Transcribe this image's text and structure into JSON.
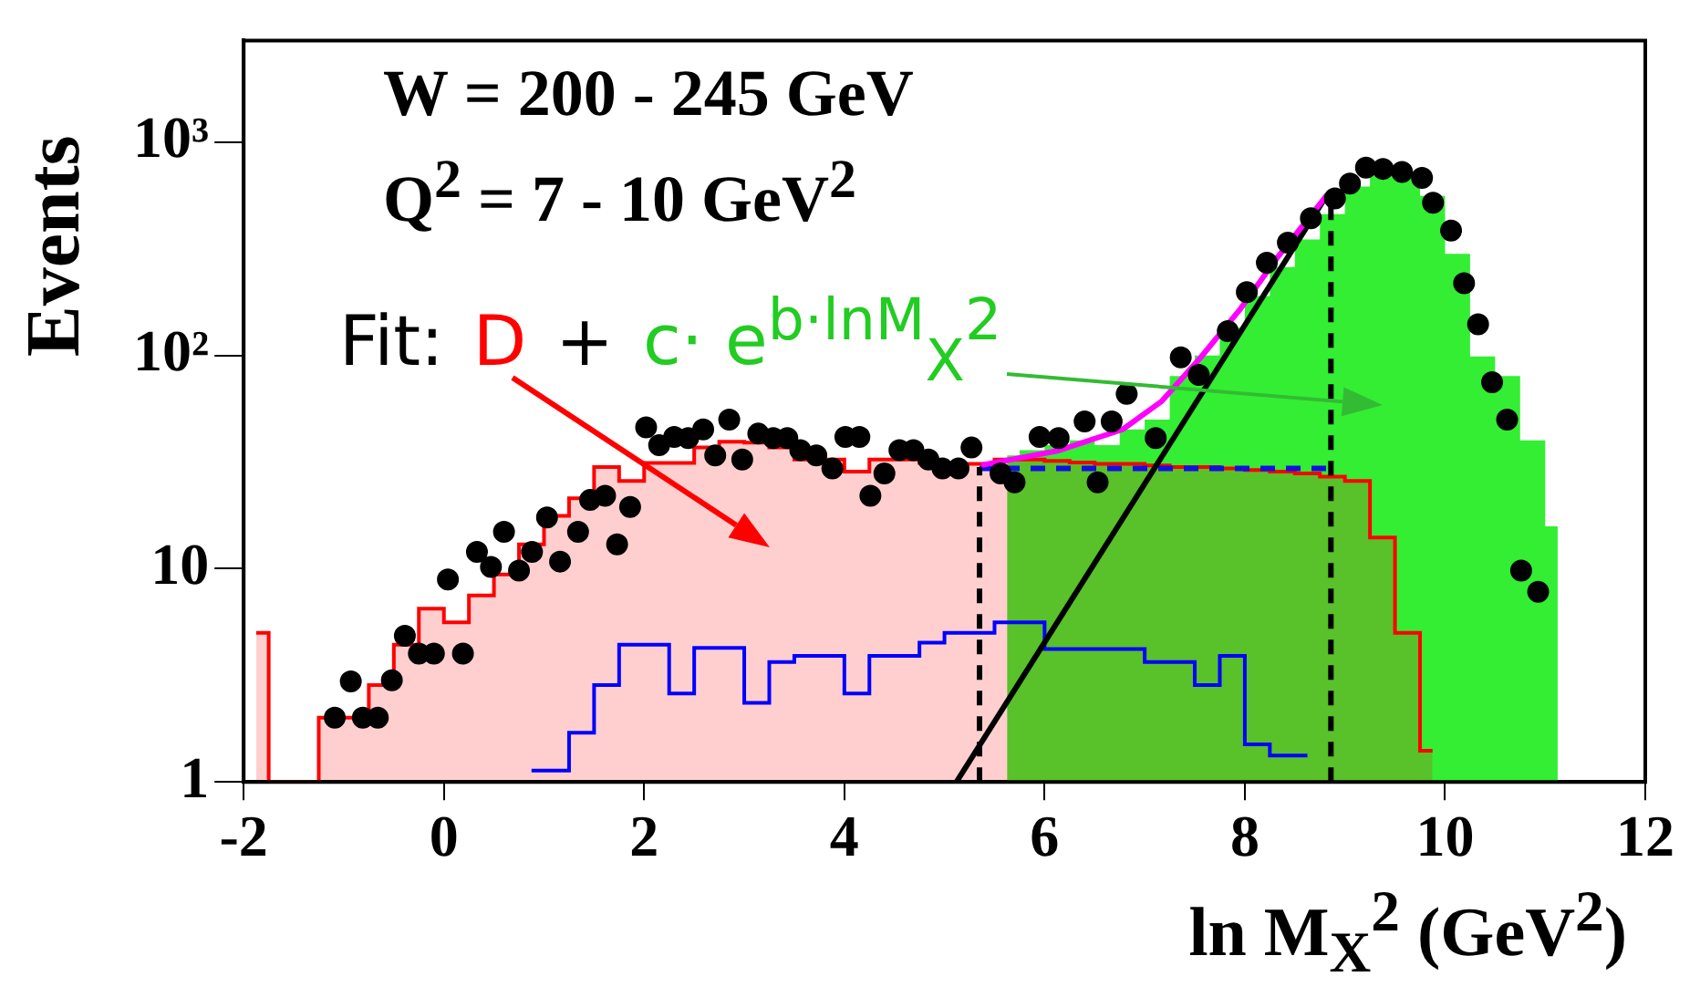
{
  "chart_data": {
    "type": "step",
    "log": "y",
    "xlim": [
      -2,
      12
    ],
    "xticks": [
      -2,
      0,
      2,
      4,
      6,
      8,
      10,
      12
    ],
    "ylim": [
      1,
      3000
    ],
    "yticks": [
      1,
      10,
      {
        "value": 100,
        "label": "10²"
      },
      {
        "value": 1000,
        "label": "10³"
      }
    ],
    "ylabel": "Events",
    "xlabel": "ln M$_{X}$$^{2}$ (GeV$^{2}$)",
    "annotations": [
      "W = 200 - 245 GeV",
      "Q$^{2}$ = 7 - 10 GeV$^{2}$",
      "Fit:",
      "D",
      "+",
      "c· e$^{b·lnM}$$_{X}$$^{2}$"
    ],
    "series": [
      {
        "type": "area",
        "color": "#33ee33",
        "x": [
          5.625,
          5.875,
          6.125,
          6.375,
          6.625,
          6.875,
          7.125,
          7.375,
          7.625,
          7.875,
          8.125,
          8.375,
          8.625,
          8.875,
          9.125,
          9.375,
          9.625,
          9.875,
          10.125,
          10.375,
          10.625,
          10.875,
          11.125
        ],
        "values": [
          34,
          36,
          38,
          40,
          38,
          45,
          50,
          80,
          100,
          135,
          190,
          260,
          350,
          460,
          620,
          700,
          680,
          560,
          300,
          99,
          80,
          40,
          15.8
        ]
      },
      {
        "type": "area",
        "color": "#ff0000",
        "x": [
          -1.875,
          -1.625,
          -1.375,
          -1.125,
          -0.875,
          -0.625,
          -0.375,
          -0.125,
          0.125,
          0.375,
          0.625,
          0.875,
          1.125,
          1.375,
          1.625,
          1.875,
          2.125,
          2.375,
          2.625,
          2.875,
          3.125,
          3.375,
          3.625,
          3.875,
          4.125,
          4.375,
          4.625,
          4.875,
          5.125,
          5.375,
          5.625,
          5.875,
          6.125,
          6.375,
          6.625,
          6.875,
          7.125,
          7.375,
          7.625,
          7.875,
          8.125,
          8.375,
          8.625,
          8.875,
          9.125,
          9.375,
          9.625,
          9.875
        ],
        "values": [
          5,
          1,
          1,
          2.0,
          2.0,
          2.85,
          4.4,
          6.5,
          5.6,
          7.5,
          9.4,
          13,
          17.7,
          21.4,
          30,
          25.8,
          31.3,
          31.3,
          37,
          39.4,
          39,
          37,
          32.5,
          32.5,
          28.5,
          32.5,
          32.5,
          31.3,
          31,
          31,
          32.5,
          32.5,
          32,
          31.5,
          31,
          31,
          30.5,
          30,
          30,
          29.5,
          29,
          28.5,
          28,
          27,
          25.8,
          14,
          5,
          1.4
        ]
      },
      {
        "type": "step",
        "color": "#0000ff",
        "x": [
          0.875,
          1.125,
          1.375,
          1.625,
          1.875,
          2.125,
          2.375,
          2.625,
          2.875,
          3.125,
          3.375,
          3.625,
          3.875,
          4.125,
          4.375,
          4.625,
          4.875,
          5.125,
          5.375,
          5.625,
          5.875,
          6.125,
          6.375,
          6.625,
          6.875,
          7.125,
          7.375,
          7.625,
          7.875,
          8.125,
          8.375,
          8.625
        ],
        "values": [
          1.13,
          1.13,
          1.7,
          2.85,
          4.4,
          4.4,
          2.6,
          4.25,
          4.25,
          2.35,
          3.65,
          3.9,
          3.9,
          2.6,
          3.9,
          3.9,
          4.5,
          5,
          5,
          5.6,
          5.6,
          4.2,
          4.2,
          4.2,
          4.2,
          3.65,
          3.65,
          2.85,
          3.9,
          1.5,
          1.33,
          1.33
        ]
      },
      {
        "type": "line",
        "color": "#1010e0",
        "line_style": "dashed",
        "x": [
          5.35,
          8.86
        ],
        "values": [
          29.5,
          29.5
        ]
      },
      {
        "type": "line",
        "color": "#000000",
        "line_style": "dashed",
        "x": [
          5.35,
          5.35
        ],
        "values": [
          1,
          30
        ]
      },
      {
        "type": "line",
        "color": "#000000",
        "line_style": "dashed",
        "x": [
          8.86,
          8.86
        ],
        "values": [
          1,
          580
        ]
      },
      {
        "type": "line",
        "color": "#000000",
        "x": [
          5.12,
          8.82
        ],
        "values": [
          1,
          565
        ]
      },
      {
        "type": "line",
        "color": "#ff00ff",
        "x": [
          5.37,
          6.14,
          6.78,
          7.17,
          7.56,
          7.95,
          8.33,
          8.82
        ],
        "values": [
          30.6,
          35.8,
          45,
          61,
          98,
          164,
          290,
          565
        ]
      },
      {
        "type": "scatter",
        "color": "#000000",
        "marker": "circle",
        "x": [
          -1.09,
          -0.93,
          -0.81,
          -0.66,
          -0.52,
          -0.39,
          -0.25,
          -0.1,
          0.04,
          0.19,
          0.33,
          0.47,
          0.6,
          0.75,
          0.88,
          1.03,
          1.16,
          1.34,
          1.46,
          1.61,
          1.73,
          1.86,
          2.02,
          2.15,
          2.3,
          2.44,
          2.59,
          2.71,
          2.85,
          2.98,
          3.14,
          3.29,
          3.43,
          3.56,
          3.72,
          3.88,
          4.01,
          4.15,
          4.26,
          4.4,
          4.55,
          4.69,
          4.84,
          4.98,
          5.14,
          5.27,
          5.56,
          5.7,
          5.95,
          6.14,
          6.4,
          6.53,
          6.67,
          6.82,
          7.11,
          7.36,
          7.54,
          7.83,
          8.02,
          8.22,
          8.43,
          8.66,
          8.9,
          9.05,
          9.21,
          9.38,
          9.57,
          9.77,
          9.88,
          10.06,
          10.19,
          10.33,
          10.47,
          10.62,
          10.76,
          10.93
        ],
        "values": [
          2.0,
          2.96,
          2.0,
          2.0,
          3.0,
          4.85,
          4.0,
          4.0,
          8.9,
          4.0,
          12,
          10.2,
          14.9,
          9.8,
          12,
          17.4,
          10.8,
          14.9,
          21,
          22,
          13,
          19.5,
          46,
          38,
          41.5,
          41,
          45,
          34,
          50,
          32.5,
          43,
          41,
          41,
          36,
          34,
          29.5,
          41.5,
          41.5,
          22,
          28,
          36,
          36,
          32.5,
          29.5,
          29.5,
          37,
          28,
          25.4,
          41.5,
          41,
          49,
          25.4,
          49,
          66,
          41,
          98,
          81,
          130,
          198,
          272,
          338,
          440,
          545,
          640,
          760,
          750,
          725,
          680,
          520,
          385,
          218,
          140,
          75,
          50,
          9.8,
          7.8
        ]
      }
    ]
  }
}
